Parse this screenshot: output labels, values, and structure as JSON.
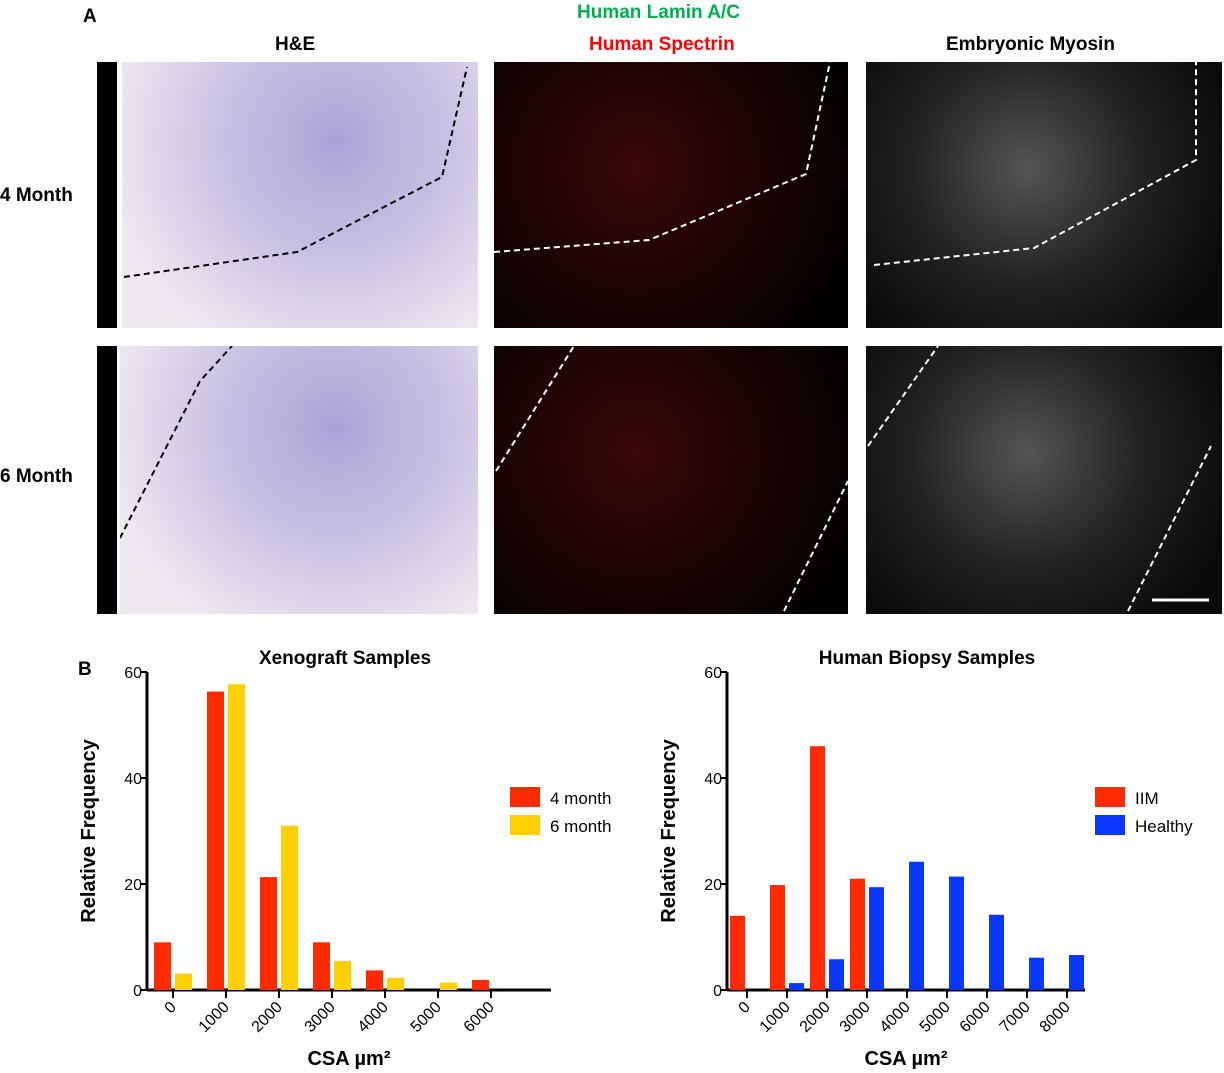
{
  "panel_a": {
    "label": "A",
    "columns": [
      "H&E",
      "Human Spectrin",
      "Embryonic Myosin"
    ],
    "lamin_label": "Human Lamin A/C",
    "lamin_color": "#00b050",
    "spectrin_color": "#ff0000",
    "rows": [
      "4 Month",
      "6 Month"
    ]
  },
  "panel_b": {
    "label": "B"
  },
  "chart_data": [
    {
      "type": "bar",
      "title": "Xenograft Samples",
      "xlabel": "CSA µm²",
      "ylabel": "Relative Frequency",
      "ylim": [
        0,
        60
      ],
      "yticks": [
        0,
        20,
        40,
        60
      ],
      "categories": [
        "0",
        "1000",
        "2000",
        "3000",
        "4000",
        "5000",
        "6000"
      ],
      "series": [
        {
          "name": "4 month",
          "color": "#ff2a00",
          "values": [
            9,
            56.3,
            21.3,
            9,
            3.7,
            0,
            1.9
          ]
        },
        {
          "name": "6 month",
          "color": "#ffd000",
          "values": [
            3.1,
            57.7,
            31,
            5.5,
            2.3,
            1.4,
            0
          ]
        }
      ],
      "legend": "right",
      "grid": false
    },
    {
      "type": "bar",
      "title": "Human Biopsy Samples",
      "xlabel": "CSA µm²",
      "ylabel": "Relative Frequency",
      "ylim": [
        0,
        60
      ],
      "yticks": [
        0,
        20,
        40,
        60
      ],
      "categories": [
        "0",
        "1000",
        "2000",
        "3000",
        "4000",
        "5000",
        "6000",
        "7000",
        "8000"
      ],
      "series": [
        {
          "name": "IIM",
          "color": "#ff2a00",
          "values": [
            14,
            19.8,
            46,
            21,
            0,
            0,
            0,
            0,
            0
          ]
        },
        {
          "name": "Healthy",
          "color": "#0a36ff",
          "values": [
            0,
            1.3,
            5.8,
            19.4,
            24.2,
            21.4,
            14.2,
            6.1,
            6.6
          ]
        }
      ],
      "legend": "right",
      "grid": false
    }
  ]
}
